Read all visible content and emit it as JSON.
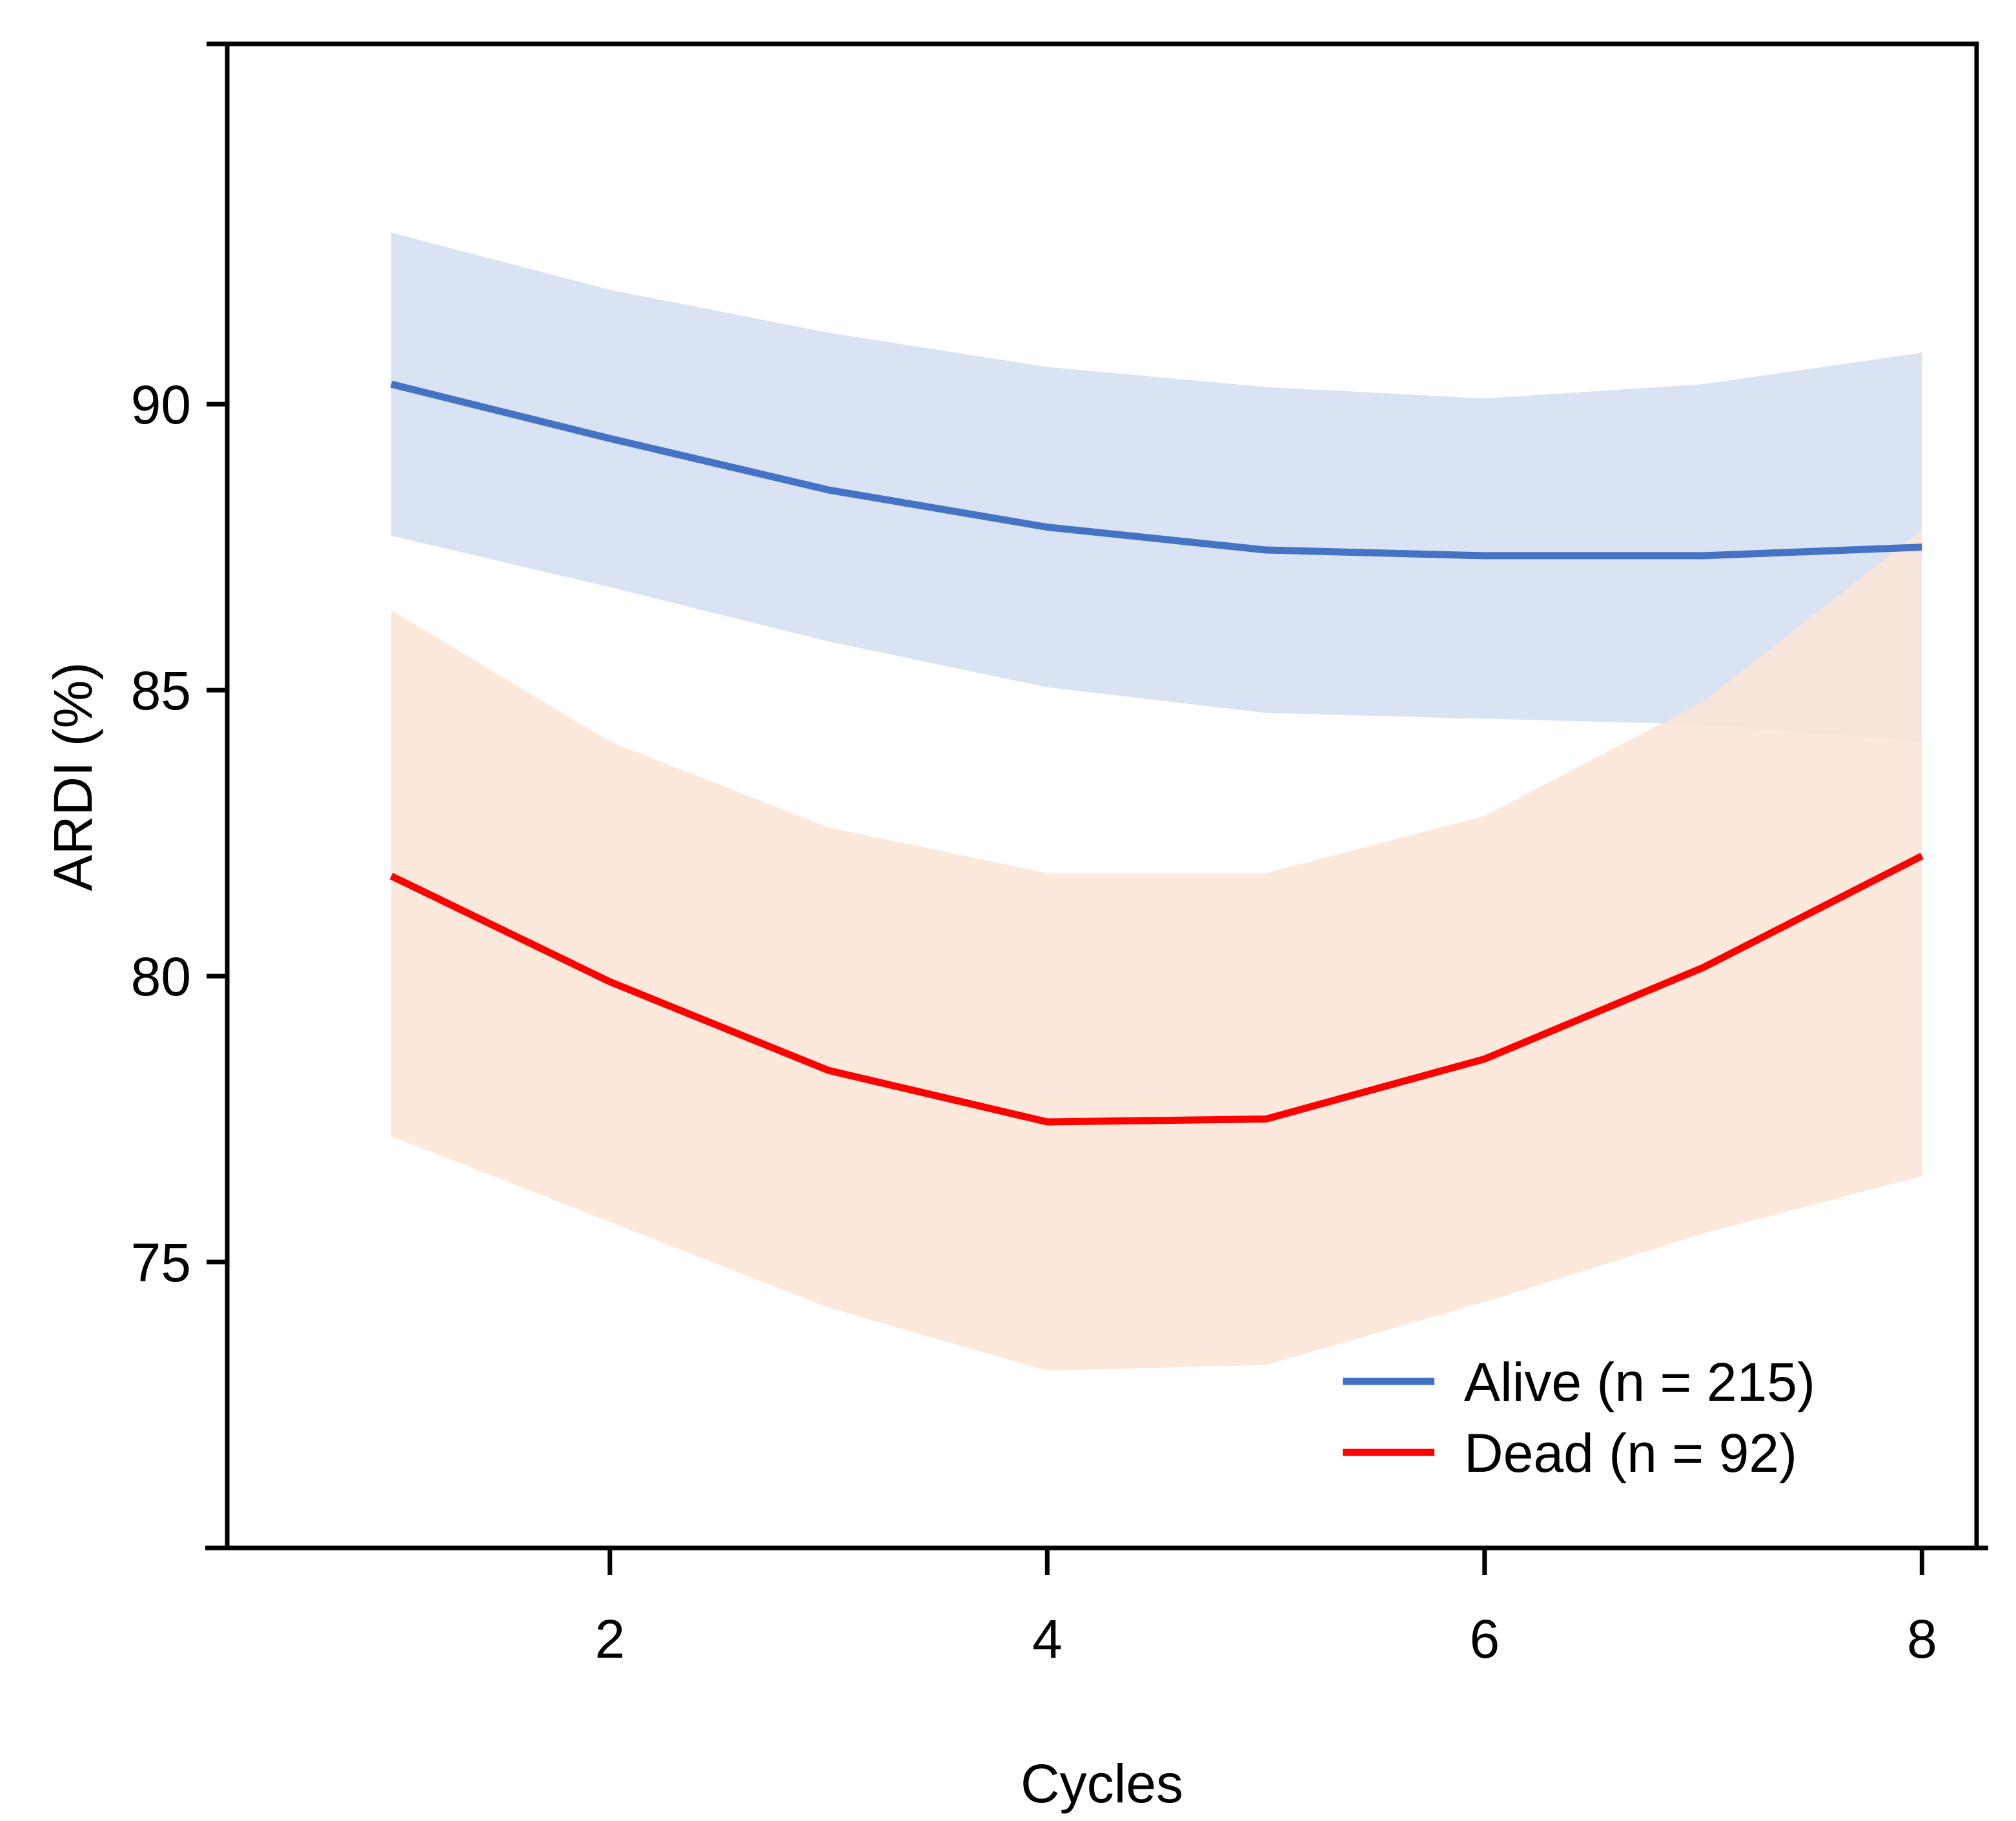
{
  "chart_data": {
    "type": "line",
    "title": "",
    "xlabel": "Cycles",
    "ylabel": "ARDI (%)",
    "xlim": [
      0.25,
      8.25
    ],
    "ylim": [
      70,
      96.3
    ],
    "xticks": [
      2,
      4,
      6,
      8
    ],
    "yticks": [
      75,
      80,
      85,
      90
    ],
    "xtick_labels": [
      "2",
      "4",
      "6",
      "8"
    ],
    "ytick_labels": [
      "75",
      "80",
      "85",
      "90"
    ],
    "grid": false,
    "legend_position": "bottom-right",
    "x": [
      1,
      2,
      3,
      4,
      5,
      6,
      7,
      8
    ],
    "series": [
      {
        "name": "Alive (n = 215)",
        "color": "#4472C4",
        "band_color": "#DAE3F3",
        "values": [
          90.35,
          89.4,
          88.5,
          87.85,
          87.45,
          87.35,
          87.35,
          87.5
        ],
        "lower": [
          87.7,
          86.8,
          85.85,
          85.05,
          84.6,
          84.5,
          84.4,
          84.1
        ],
        "upper": [
          93.0,
          92.0,
          91.25,
          90.65,
          90.3,
          90.1,
          90.35,
          90.9
        ]
      },
      {
        "name": "Dead (n = 92)",
        "color": "#FF0000",
        "band_color": "#FBE5D6",
        "values": [
          81.75,
          79.9,
          78.35,
          77.45,
          77.5,
          78.55,
          80.15,
          82.1
        ],
        "lower": [
          77.2,
          75.7,
          74.2,
          73.1,
          73.2,
          74.3,
          75.5,
          76.5
        ],
        "upper": [
          86.4,
          84.1,
          82.6,
          81.8,
          81.8,
          82.8,
          84.8,
          87.8
        ]
      }
    ]
  }
}
